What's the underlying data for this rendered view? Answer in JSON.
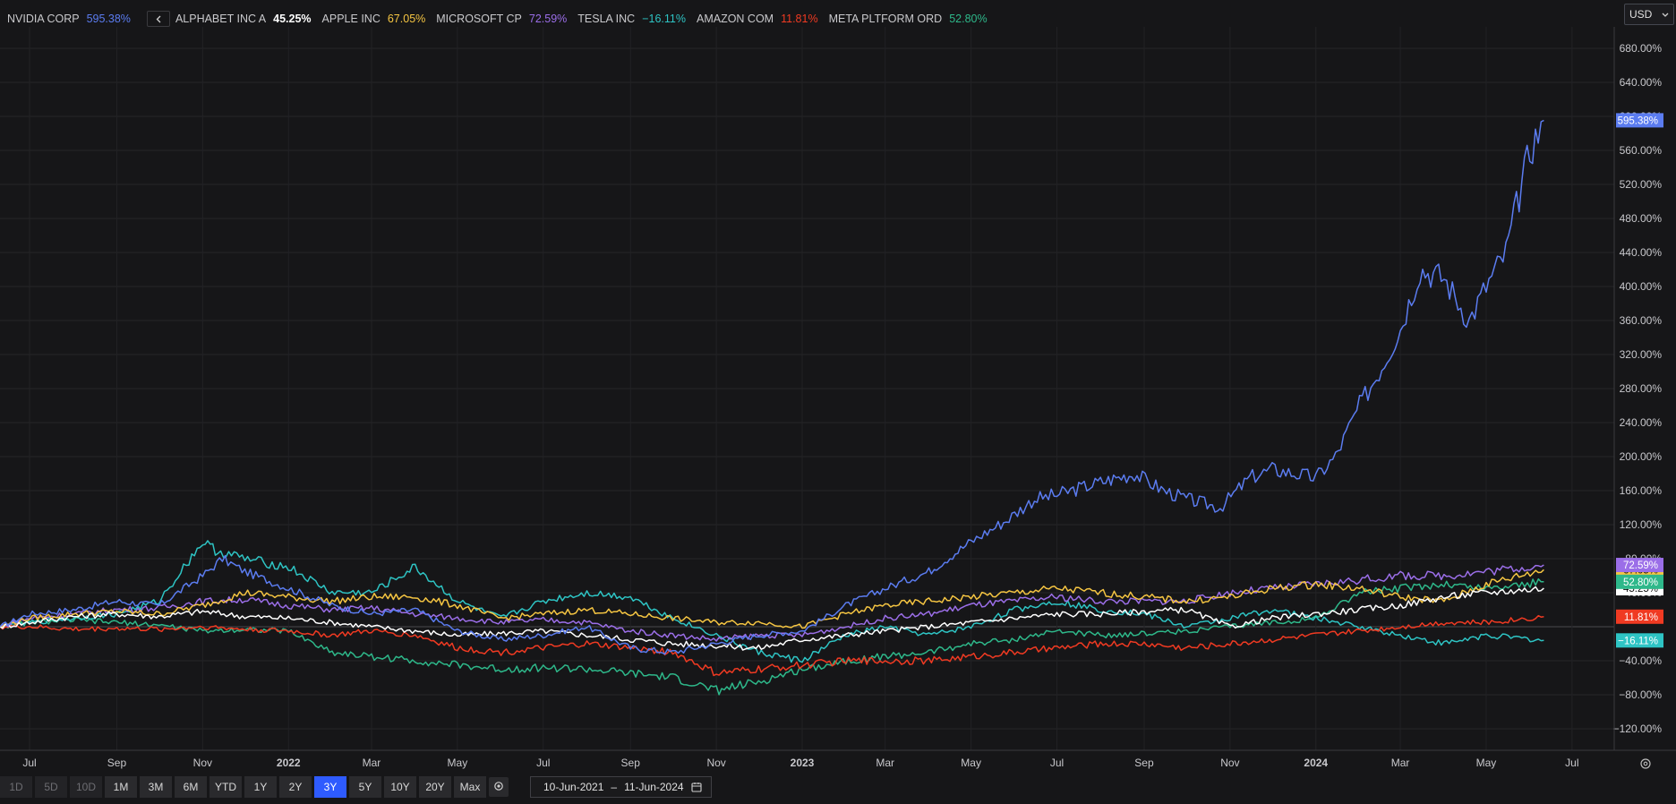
{
  "currency": {
    "label": "USD",
    "options": [
      "USD"
    ]
  },
  "legend_nav_icon": "chevron-left-icon",
  "timeframes": [
    {
      "label": "1D",
      "state": "disabled"
    },
    {
      "label": "5D",
      "state": "disabled"
    },
    {
      "label": "10D",
      "state": "disabled"
    },
    {
      "label": "1M",
      "state": "normal"
    },
    {
      "label": "3M",
      "state": "normal"
    },
    {
      "label": "6M",
      "state": "normal"
    },
    {
      "label": "YTD",
      "state": "normal"
    },
    {
      "label": "1Y",
      "state": "normal"
    },
    {
      "label": "2Y",
      "state": "normal"
    },
    {
      "label": "3Y",
      "state": "active"
    },
    {
      "label": "5Y",
      "state": "normal"
    },
    {
      "label": "10Y",
      "state": "normal"
    },
    {
      "label": "20Y",
      "state": "normal"
    },
    {
      "label": "Max",
      "state": "normal"
    }
  ],
  "date_range": {
    "start": "10-Jun-2021",
    "separator": "–",
    "end": "11-Jun-2024"
  },
  "chart_data": {
    "type": "line",
    "title": "",
    "xlabel": "",
    "ylabel": "",
    "x_range": [
      "2021-06-10",
      "2024-07-31"
    ],
    "ylim": [
      -140,
      700
    ],
    "grid": true,
    "legend_placement": "top-left",
    "y_ticks": [
      {
        "v": 680,
        "label": "680.00%"
      },
      {
        "v": 640,
        "label": "640.00%"
      },
      {
        "v": 600,
        "label": "600.00%"
      },
      {
        "v": 560,
        "label": "560.00%"
      },
      {
        "v": 520,
        "label": "520.00%"
      },
      {
        "v": 480,
        "label": "480.00%"
      },
      {
        "v": 440,
        "label": "440.00%"
      },
      {
        "v": 400,
        "label": "400.00%"
      },
      {
        "v": 360,
        "label": "360.00%"
      },
      {
        "v": 320,
        "label": "320.00%"
      },
      {
        "v": 280,
        "label": "280.00%"
      },
      {
        "v": 240,
        "label": "240.00%"
      },
      {
        "v": 200,
        "label": "200.00%"
      },
      {
        "v": 160,
        "label": "160.00%"
      },
      {
        "v": 120,
        "label": "120.00%"
      },
      {
        "v": 80,
        "label": "80.00%"
      },
      {
        "v": 40,
        "label": "40.00%"
      },
      {
        "v": -40,
        "label": "−40.00%"
      },
      {
        "v": -80,
        "label": "−80.00%"
      },
      {
        "v": -120,
        "label": "−120.00%"
      }
    ],
    "x_ticks": [
      {
        "date": "2021-07-01",
        "label": "Jul",
        "bold": false
      },
      {
        "date": "2021-09-01",
        "label": "Sep",
        "bold": false
      },
      {
        "date": "2021-11-01",
        "label": "Nov",
        "bold": false
      },
      {
        "date": "2022-01-01",
        "label": "2022",
        "bold": true
      },
      {
        "date": "2022-03-01",
        "label": "Mar",
        "bold": false
      },
      {
        "date": "2022-05-01",
        "label": "May",
        "bold": false
      },
      {
        "date": "2022-07-01",
        "label": "Jul",
        "bold": false
      },
      {
        "date": "2022-09-01",
        "label": "Sep",
        "bold": false
      },
      {
        "date": "2022-11-01",
        "label": "Nov",
        "bold": false
      },
      {
        "date": "2023-01-01",
        "label": "2023",
        "bold": true
      },
      {
        "date": "2023-03-01",
        "label": "Mar",
        "bold": false
      },
      {
        "date": "2023-05-01",
        "label": "May",
        "bold": false
      },
      {
        "date": "2023-07-01",
        "label": "Jul",
        "bold": false
      },
      {
        "date": "2023-09-01",
        "label": "Sep",
        "bold": false
      },
      {
        "date": "2023-11-01",
        "label": "Nov",
        "bold": false
      },
      {
        "date": "2024-01-01",
        "label": "2024",
        "bold": true
      },
      {
        "date": "2024-03-01",
        "label": "Mar",
        "bold": false
      },
      {
        "date": "2024-05-01",
        "label": "May",
        "bold": false
      },
      {
        "date": "2024-07-01",
        "label": "Jul",
        "bold": false
      }
    ],
    "series": [
      {
        "name": "NVIDIA CORP",
        "value_label": "595.38%",
        "final": 595.38,
        "color": "#5b7cf0",
        "name_bold": false,
        "x": [
          "2021-06-10",
          "2021-07-01",
          "2021-08-01",
          "2021-09-01",
          "2021-10-01",
          "2021-11-01",
          "2021-11-15",
          "2021-12-01",
          "2022-01-01",
          "2022-02-01",
          "2022-03-01",
          "2022-04-01",
          "2022-05-01",
          "2022-06-01",
          "2022-07-01",
          "2022-08-01",
          "2022-09-01",
          "2022-10-01",
          "2022-11-01",
          "2022-12-01",
          "2023-01-01",
          "2023-02-01",
          "2023-03-01",
          "2023-04-01",
          "2023-05-01",
          "2023-05-26",
          "2023-06-15",
          "2023-07-01",
          "2023-08-01",
          "2023-08-25",
          "2023-09-15",
          "2023-10-01",
          "2023-10-25",
          "2023-11-15",
          "2023-12-01",
          "2024-01-01",
          "2024-01-15",
          "2024-02-01",
          "2024-02-15",
          "2024-03-01",
          "2024-03-15",
          "2024-04-01",
          "2024-04-19",
          "2024-05-01",
          "2024-05-15",
          "2024-06-01",
          "2024-06-11"
        ],
        "y": [
          0,
          15,
          20,
          30,
          25,
          60,
          80,
          65,
          45,
          25,
          15,
          20,
          -5,
          -15,
          -10,
          0,
          -25,
          -30,
          -20,
          -10,
          -5,
          25,
          45,
          65,
          100,
          125,
          150,
          155,
          170,
          180,
          160,
          150,
          140,
          175,
          185,
          175,
          200,
          260,
          300,
          350,
          420,
          410,
          360,
          400,
          440,
          560,
          595.38
        ]
      },
      {
        "name": "ALPHABET INC A",
        "value_label": "45.25%",
        "final": 45.25,
        "color": "#ffffff",
        "name_bold": false,
        "value_bold": true,
        "x": [
          "2021-06-10",
          "2021-07-01",
          "2021-08-01",
          "2021-09-01",
          "2021-10-01",
          "2021-11-01",
          "2021-12-01",
          "2022-01-01",
          "2022-02-01",
          "2022-03-01",
          "2022-04-01",
          "2022-05-01",
          "2022-06-01",
          "2022-07-01",
          "2022-08-01",
          "2022-09-01",
          "2022-10-01",
          "2022-11-01",
          "2022-12-01",
          "2023-01-01",
          "2023-02-01",
          "2023-03-01",
          "2023-04-01",
          "2023-05-01",
          "2023-06-01",
          "2023-07-01",
          "2023-08-01",
          "2023-09-01",
          "2023-10-01",
          "2023-11-01",
          "2023-12-01",
          "2024-01-01",
          "2024-02-01",
          "2024-03-01",
          "2024-04-01",
          "2024-05-01",
          "2024-06-11"
        ],
        "y": [
          0,
          5,
          12,
          15,
          12,
          18,
          12,
          10,
          5,
          0,
          -5,
          -10,
          -8,
          -5,
          -10,
          -15,
          -20,
          -22,
          -25,
          -15,
          -10,
          -5,
          0,
          5,
          10,
          15,
          15,
          18,
          20,
          0,
          10,
          15,
          20,
          25,
          35,
          40,
          45.25
        ]
      },
      {
        "name": "APPLE INC",
        "value_label": "67.05%",
        "final": 67.05,
        "color": "#f5c542",
        "name_bold": false,
        "x": [
          "2021-06-10",
          "2021-07-01",
          "2021-08-01",
          "2021-09-01",
          "2021-10-01",
          "2021-11-01",
          "2021-12-01",
          "2022-01-01",
          "2022-02-01",
          "2022-03-01",
          "2022-04-01",
          "2022-05-01",
          "2022-06-01",
          "2022-07-01",
          "2022-08-01",
          "2022-09-01",
          "2022-10-01",
          "2022-11-01",
          "2022-12-01",
          "2023-01-01",
          "2023-02-01",
          "2023-03-01",
          "2023-04-01",
          "2023-05-01",
          "2023-06-01",
          "2023-07-01",
          "2023-08-01",
          "2023-09-01",
          "2023-10-01",
          "2023-11-01",
          "2023-12-01",
          "2024-01-01",
          "2024-02-01",
          "2024-03-01",
          "2024-04-01",
          "2024-05-01",
          "2024-06-11"
        ],
        "y": [
          0,
          10,
          15,
          18,
          15,
          25,
          40,
          35,
          30,
          35,
          35,
          25,
          10,
          15,
          20,
          15,
          10,
          5,
          5,
          0,
          15,
          25,
          30,
          35,
          40,
          45,
          40,
          35,
          30,
          35,
          45,
          50,
          45,
          35,
          30,
          50,
          67.05
        ]
      },
      {
        "name": "MICROSOFT CP",
        "value_label": "72.59%",
        "final": 72.59,
        "color": "#9b6ee8",
        "name_bold": false,
        "x": [
          "2021-06-10",
          "2021-07-01",
          "2021-08-01",
          "2021-09-01",
          "2021-10-01",
          "2021-11-01",
          "2021-12-01",
          "2022-01-01",
          "2022-02-01",
          "2022-03-01",
          "2022-04-01",
          "2022-05-01",
          "2022-06-01",
          "2022-07-01",
          "2022-08-01",
          "2022-09-01",
          "2022-10-01",
          "2022-11-01",
          "2022-12-01",
          "2023-01-01",
          "2023-02-01",
          "2023-03-01",
          "2023-04-01",
          "2023-05-01",
          "2023-06-01",
          "2023-07-01",
          "2023-08-01",
          "2023-09-01",
          "2023-10-01",
          "2023-11-01",
          "2023-12-01",
          "2024-01-01",
          "2024-02-01",
          "2024-03-01",
          "2024-04-01",
          "2024-05-01",
          "2024-06-11"
        ],
        "y": [
          0,
          10,
          15,
          20,
          22,
          30,
          32,
          25,
          20,
          22,
          15,
          10,
          5,
          8,
          5,
          -5,
          -10,
          -15,
          -10,
          -10,
          0,
          10,
          15,
          25,
          30,
          35,
          30,
          30,
          30,
          40,
          45,
          50,
          55,
          60,
          60,
          65,
          72.59
        ]
      },
      {
        "name": "TESLA INC",
        "value_label": "−16.11%",
        "final": -16.11,
        "color": "#2ec4c4",
        "name_bold": false,
        "x": [
          "2021-06-10",
          "2021-07-01",
          "2021-08-01",
          "2021-09-01",
          "2021-10-01",
          "2021-11-01",
          "2021-11-10",
          "2021-12-01",
          "2022-01-01",
          "2022-02-01",
          "2022-03-01",
          "2022-04-01",
          "2022-05-01",
          "2022-06-01",
          "2022-07-01",
          "2022-08-01",
          "2022-09-01",
          "2022-10-01",
          "2022-11-01",
          "2022-12-01",
          "2023-01-01",
          "2023-02-01",
          "2023-03-01",
          "2023-04-01",
          "2023-05-01",
          "2023-06-01",
          "2023-07-01",
          "2023-08-01",
          "2023-09-01",
          "2023-10-01",
          "2023-11-01",
          "2023-12-01",
          "2024-01-01",
          "2024-02-01",
          "2024-03-01",
          "2024-04-01",
          "2024-05-01",
          "2024-06-11"
        ],
        "y": [
          0,
          5,
          10,
          15,
          30,
          100,
          90,
          80,
          70,
          40,
          40,
          70,
          30,
          10,
          30,
          40,
          35,
          10,
          -10,
          -30,
          -40,
          -10,
          0,
          -10,
          0,
          20,
          30,
          20,
          15,
          0,
          10,
          20,
          10,
          0,
          -10,
          -20,
          -10,
          -16.11
        ]
      },
      {
        "name": "AMAZON COM",
        "value_label": "11.81%",
        "final": 11.81,
        "color": "#f03a22",
        "name_bold": false,
        "x": [
          "2021-06-10",
          "2021-07-01",
          "2021-08-01",
          "2021-09-01",
          "2021-10-01",
          "2021-11-01",
          "2021-12-01",
          "2022-01-01",
          "2022-02-01",
          "2022-03-01",
          "2022-04-01",
          "2022-05-01",
          "2022-06-01",
          "2022-07-01",
          "2022-08-01",
          "2022-09-01",
          "2022-10-01",
          "2022-11-01",
          "2022-12-01",
          "2023-01-01",
          "2023-02-01",
          "2023-03-01",
          "2023-04-01",
          "2023-05-01",
          "2023-06-01",
          "2023-07-01",
          "2023-08-01",
          "2023-09-01",
          "2023-10-01",
          "2023-11-01",
          "2023-12-01",
          "2024-01-01",
          "2024-02-01",
          "2024-03-01",
          "2024-04-01",
          "2024-05-01",
          "2024-06-11"
        ],
        "y": [
          0,
          0,
          -3,
          -2,
          -3,
          0,
          -3,
          -5,
          -10,
          -5,
          -10,
          -25,
          -30,
          -25,
          -20,
          -25,
          -30,
          -55,
          -50,
          -45,
          -40,
          -40,
          -40,
          -35,
          -30,
          -25,
          -20,
          -20,
          -25,
          -20,
          -15,
          -10,
          -5,
          0,
          5,
          5,
          11.81
        ]
      },
      {
        "name": "META PLTFORM ORD",
        "value_label": "52.80%",
        "final": 52.8,
        "color": "#2eb88a",
        "name_bold": false,
        "x": [
          "2021-06-10",
          "2021-07-01",
          "2021-08-01",
          "2021-09-01",
          "2021-10-01",
          "2021-11-01",
          "2021-12-01",
          "2022-01-01",
          "2022-02-01",
          "2022-03-01",
          "2022-04-01",
          "2022-05-01",
          "2022-06-01",
          "2022-07-01",
          "2022-08-01",
          "2022-09-01",
          "2022-10-01",
          "2022-11-01",
          "2022-12-01",
          "2023-01-01",
          "2023-02-01",
          "2023-03-01",
          "2023-04-01",
          "2023-05-01",
          "2023-06-01",
          "2023-07-01",
          "2023-08-01",
          "2023-09-01",
          "2023-10-01",
          "2023-11-01",
          "2023-12-01",
          "2024-01-01",
          "2024-02-01",
          "2024-03-01",
          "2024-04-01",
          "2024-05-01",
          "2024-06-11"
        ],
        "y": [
          0,
          5,
          8,
          5,
          2,
          -5,
          -3,
          -5,
          -30,
          -35,
          -40,
          -45,
          -50,
          -48,
          -50,
          -55,
          -60,
          -75,
          -65,
          -50,
          -40,
          -35,
          -30,
          -20,
          -15,
          -5,
          -10,
          -8,
          -5,
          0,
          5,
          10,
          40,
          45,
          50,
          45,
          52.8
        ]
      }
    ]
  }
}
